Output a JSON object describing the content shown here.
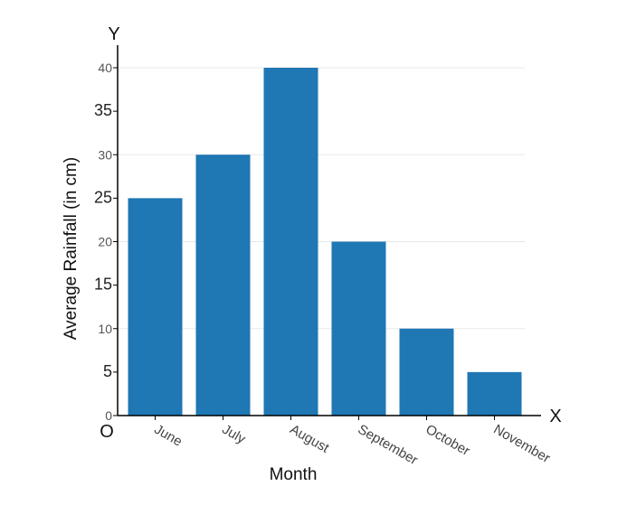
{
  "chart_data": {
    "type": "bar",
    "title": "",
    "xlabel": "Month",
    "ylabel": "Average Rainfall (in cm)",
    "categories": [
      "June",
      "July",
      "August",
      "September",
      "October",
      "November"
    ],
    "values": [
      25,
      30,
      40,
      20,
      10,
      5
    ],
    "ylim": [
      0,
      40
    ],
    "yticks": [
      0,
      5,
      10,
      15,
      20,
      25,
      30,
      35,
      40
    ],
    "bar_color": "#1f77b4",
    "grid": true,
    "origin_label": "O",
    "x_axis_letter": "X",
    "y_axis_letter": "Y"
  }
}
